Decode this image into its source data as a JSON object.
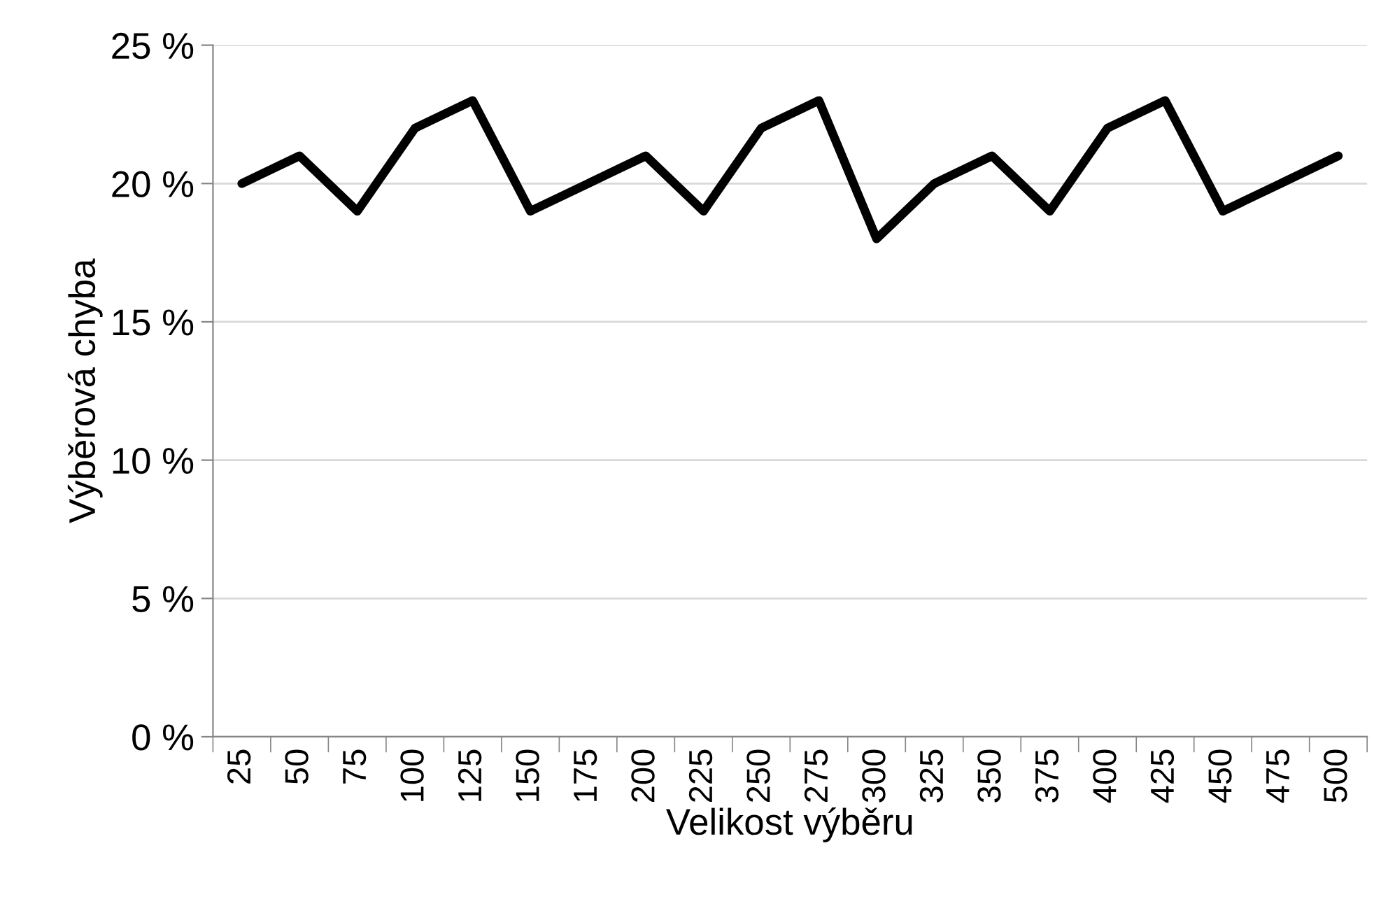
{
  "chart_data": {
    "type": "line",
    "xlabel": "Velikost výběru",
    "ylabel": "Výběrová chyba",
    "categories": [
      "25",
      "50",
      "75",
      "100",
      "125",
      "150",
      "175",
      "200",
      "225",
      "250",
      "275",
      "300",
      "325",
      "350",
      "375",
      "400",
      "425",
      "450",
      "475",
      "500"
    ],
    "series": [
      {
        "color": "#000000",
        "values": [
          20,
          21,
          19,
          22,
          23,
          19,
          20,
          21,
          19,
          22,
          23,
          18,
          20,
          21,
          19,
          22,
          23,
          19,
          20,
          21
        ]
      }
    ],
    "ylim": [
      0,
      25
    ],
    "yticks": [
      {
        "value": 0,
        "label": "0 %"
      },
      {
        "value": 5,
        "label": "5 %"
      },
      {
        "value": 10,
        "label": "10 %"
      },
      {
        "value": 15,
        "label": "15 %"
      },
      {
        "value": 20,
        "label": "20 %"
      },
      {
        "value": 25,
        "label": "25 %"
      }
    ],
    "grid": "y",
    "marker": "none",
    "line_style": "solid"
  }
}
